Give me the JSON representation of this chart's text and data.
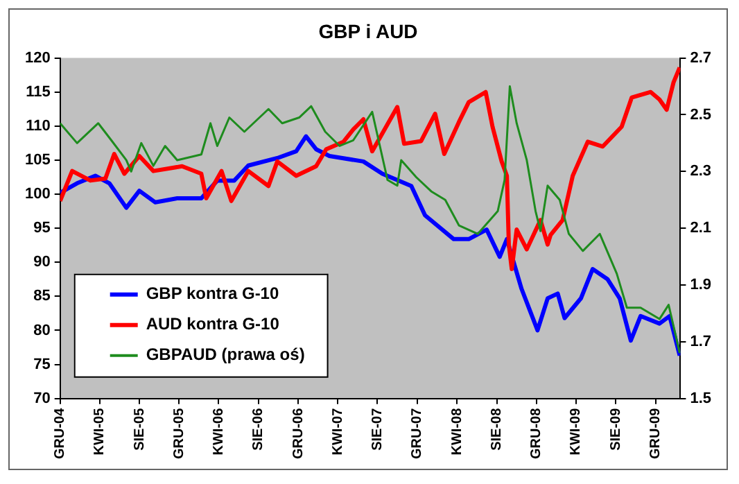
{
  "chart_data": {
    "type": "line",
    "title": "GBP i AUD",
    "legend": "bottom left",
    "grid": false,
    "marker": "none",
    "line_style": "solid",
    "xlim": [
      "2004-12-01",
      "2010-02-15"
    ],
    "xticks": [
      {
        "value": "2004-12-01",
        "label": "GRU-04"
      },
      {
        "value": "2005-04-01",
        "label": "KWI-05"
      },
      {
        "value": "2005-08-01",
        "label": "SIE-05"
      },
      {
        "value": "2005-12-01",
        "label": "GRU-05"
      },
      {
        "value": "2006-04-01",
        "label": "KWI-06"
      },
      {
        "value": "2006-08-01",
        "label": "SIE-06"
      },
      {
        "value": "2006-12-01",
        "label": "GRU-06"
      },
      {
        "value": "2007-04-01",
        "label": "KWI-07"
      },
      {
        "value": "2007-08-01",
        "label": "SIE-07"
      },
      {
        "value": "2007-12-01",
        "label": "GRU-07"
      },
      {
        "value": "2008-04-01",
        "label": "KWI-08"
      },
      {
        "value": "2008-08-01",
        "label": "SIE-08"
      },
      {
        "value": "2008-12-01",
        "label": "GRU-08"
      },
      {
        "value": "2009-04-01",
        "label": "KWI-09"
      },
      {
        "value": "2009-08-01",
        "label": "SIE-09"
      },
      {
        "value": "2009-12-01",
        "label": "GRU-09"
      }
    ],
    "ylim": [
      70,
      120
    ],
    "yticks": [
      70,
      75,
      80,
      85,
      90,
      95,
      100,
      105,
      110,
      115,
      120
    ],
    "y2lim": [
      1.5,
      2.7
    ],
    "y2ticks": [
      1.5,
      1.7,
      1.9,
      2.1,
      2.3,
      2.5,
      2.7
    ],
    "series": [
      {
        "name": "GBP kontra G-10",
        "color": "#0000ff",
        "x": [
          "2004-12-01",
          "2005-01-22",
          "2005-03-19",
          "2005-05-01",
          "2005-06-22",
          "2005-08-01",
          "2005-09-19",
          "2005-11-25",
          "2006-02-07",
          "2006-03-28",
          "2006-05-19",
          "2006-07-01",
          "2006-09-28",
          "2006-11-25",
          "2006-12-25",
          "2007-01-25",
          "2007-03-07",
          "2007-06-19",
          "2007-08-16",
          "2007-11-13",
          "2007-12-25",
          "2008-03-22",
          "2008-05-07",
          "2008-07-01",
          "2008-08-10",
          "2008-09-01",
          "2008-10-16",
          "2008-12-04",
          "2009-01-04",
          "2009-02-04",
          "2009-02-25",
          "2009-04-16",
          "2009-05-22",
          "2009-07-07",
          "2009-08-13",
          "2009-09-16",
          "2009-10-16",
          "2009-12-13",
          "2010-01-13",
          "2010-02-13"
        ],
        "values": [
          100.2,
          101.6,
          102.7,
          101.6,
          98,
          100.5,
          98.8,
          99.4,
          99.4,
          102,
          102,
          104.2,
          105.3,
          106.3,
          108.5,
          106.6,
          105.6,
          104.8,
          103,
          101.2,
          96.9,
          93.4,
          93.4,
          94.8,
          90.8,
          93.4,
          86.1,
          80,
          84.7,
          85.4,
          81.8,
          84.7,
          89,
          87.5,
          84.7,
          78.5,
          82.1,
          81,
          82.1,
          76.3
        ]
      },
      {
        "name": "AUD kontra G-10",
        "color": "#ff0000",
        "x": [
          "2004-12-01",
          "2005-01-07",
          "2005-03-04",
          "2005-04-19",
          "2005-05-16",
          "2005-06-16",
          "2005-08-01",
          "2005-09-13",
          "2005-12-10",
          "2006-02-07",
          "2006-02-22",
          "2006-04-10",
          "2006-05-10",
          "2006-07-01",
          "2006-09-01",
          "2006-09-28",
          "2006-11-25",
          "2007-01-25",
          "2007-02-25",
          "2007-04-19",
          "2007-05-19",
          "2007-06-19",
          "2007-07-16",
          "2007-10-01",
          "2007-10-22",
          "2007-12-13",
          "2008-01-25",
          "2008-02-22",
          "2008-04-07",
          "2008-05-07",
          "2008-06-28",
          "2008-07-19",
          "2008-08-16",
          "2008-09-01",
          "2008-09-07",
          "2008-09-16",
          "2008-10-01",
          "2008-11-01",
          "2008-12-13",
          "2009-01-04",
          "2009-01-13",
          "2009-02-19",
          "2009-03-22",
          "2009-05-07",
          "2009-06-22",
          "2009-08-19",
          "2009-09-19",
          "2009-11-16",
          "2009-12-13",
          "2010-01-04",
          "2010-01-25",
          "2010-02-13"
        ],
        "values": [
          99,
          103.4,
          102,
          102.3,
          105.9,
          103,
          105.6,
          103.4,
          104.1,
          103,
          99.4,
          103.4,
          99,
          103.4,
          101.2,
          104.8,
          102.7,
          104.1,
          106.6,
          107.7,
          109.5,
          111,
          106.3,
          112.8,
          107.4,
          107.8,
          111.8,
          105.9,
          110.6,
          113.5,
          115,
          109.9,
          104.8,
          102.7,
          92.6,
          89,
          94.8,
          91.9,
          96.2,
          92.6,
          94,
          96.2,
          102.7,
          107.7,
          107,
          109.9,
          114.2,
          115,
          113.9,
          112.4,
          116.4,
          118.6
        ]
      },
      {
        "name": "GBPAUD (prawa oś)",
        "color": "#1e8c1e",
        "axis": "y2",
        "x": [
          "2004-12-01",
          "2005-01-22",
          "2005-03-28",
          "2005-05-07",
          "2005-06-22",
          "2005-07-07",
          "2005-08-07",
          "2005-09-13",
          "2005-10-19",
          "2005-11-25",
          "2006-02-07",
          "2006-03-07",
          "2006-03-28",
          "2006-05-04",
          "2006-06-19",
          "2006-09-01",
          "2006-10-13",
          "2006-12-04",
          "2007-01-10",
          "2007-02-22",
          "2007-04-07",
          "2007-05-19",
          "2007-07-16",
          "2007-09-01",
          "2007-10-01",
          "2007-10-13",
          "2007-11-28",
          "2008-01-13",
          "2008-02-25",
          "2008-04-07",
          "2008-06-04",
          "2008-08-04",
          "2008-08-25",
          "2008-09-10",
          "2008-10-01",
          "2008-11-01",
          "2008-11-28",
          "2008-12-13",
          "2009-01-04",
          "2009-02-10",
          "2009-03-10",
          "2009-04-22",
          "2009-06-13",
          "2009-08-04",
          "2009-09-04",
          "2009-10-16",
          "2009-12-13",
          "2010-01-10",
          "2010-02-13"
        ],
        "values": [
          2.47,
          2.4,
          2.47,
          2.41,
          2.34,
          2.3,
          2.4,
          2.32,
          2.39,
          2.34,
          2.36,
          2.47,
          2.39,
          2.49,
          2.44,
          2.52,
          2.47,
          2.49,
          2.53,
          2.44,
          2.39,
          2.41,
          2.51,
          2.27,
          2.25,
          2.34,
          2.28,
          2.23,
          2.2,
          2.11,
          2.08,
          2.16,
          2.27,
          2.6,
          2.47,
          2.34,
          2.16,
          2.09,
          2.25,
          2.2,
          2.08,
          2.02,
          2.08,
          1.94,
          1.82,
          1.82,
          1.78,
          1.83,
          1.66
        ]
      }
    ]
  }
}
